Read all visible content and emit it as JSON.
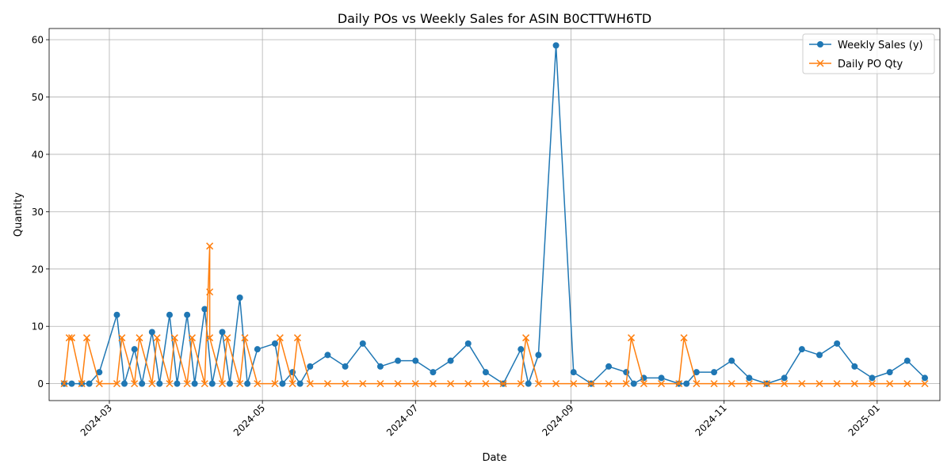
{
  "chart_data": {
    "type": "line",
    "title": "Daily POs vs Weekly Sales for ASIN B0CTTWH6TD",
    "xlabel": "Date",
    "ylabel": "Quantity",
    "x_axis_type": "date",
    "xlim": [
      "2024-02-06",
      "2025-01-26"
    ],
    "ylim": [
      -2.95,
      61.95
    ],
    "yticks": [
      0,
      10,
      20,
      30,
      40,
      50,
      60
    ],
    "xticks": [
      "2024-03-01",
      "2024-05-01",
      "2024-07-01",
      "2024-09-01",
      "2024-11-01",
      "2025-01-01"
    ],
    "xtick_labels": [
      "2024-03",
      "2024-05",
      "2024-07",
      "2024-09",
      "2024-11",
      "2025-01"
    ],
    "grid": true,
    "legend_position": "top-right",
    "colors": {
      "weekly": "#1f77b4",
      "daily": "#ff7f0e",
      "grid": "#b0b0b0"
    },
    "series": [
      {
        "name": "Weekly Sales (y)",
        "marker": "circle",
        "points": [
          [
            "2024-02-12",
            0
          ],
          [
            "2024-02-15",
            0
          ],
          [
            "2024-02-19",
            0
          ],
          [
            "2024-02-22",
            0
          ],
          [
            "2024-02-26",
            2
          ],
          [
            "2024-03-04",
            12
          ],
          [
            "2024-03-07",
            0
          ],
          [
            "2024-03-11",
            6
          ],
          [
            "2024-03-14",
            0
          ],
          [
            "2024-03-18",
            9
          ],
          [
            "2024-03-21",
            0
          ],
          [
            "2024-03-25",
            12
          ],
          [
            "2024-03-28",
            0
          ],
          [
            "2024-04-01",
            12
          ],
          [
            "2024-04-04",
            0
          ],
          [
            "2024-04-08",
            13
          ],
          [
            "2024-04-11",
            0
          ],
          [
            "2024-04-15",
            9
          ],
          [
            "2024-04-18",
            0
          ],
          [
            "2024-04-22",
            15
          ],
          [
            "2024-04-25",
            0
          ],
          [
            "2024-04-29",
            6
          ],
          [
            "2024-05-06",
            7
          ],
          [
            "2024-05-09",
            0
          ],
          [
            "2024-05-13",
            2
          ],
          [
            "2024-05-16",
            0
          ],
          [
            "2024-05-20",
            3
          ],
          [
            "2024-05-27",
            5
          ],
          [
            "2024-06-03",
            3
          ],
          [
            "2024-06-10",
            7
          ],
          [
            "2024-06-17",
            3
          ],
          [
            "2024-06-24",
            4
          ],
          [
            "2024-07-01",
            4
          ],
          [
            "2024-07-08",
            2
          ],
          [
            "2024-07-15",
            4
          ],
          [
            "2024-07-22",
            7
          ],
          [
            "2024-07-29",
            2
          ],
          [
            "2024-08-05",
            0
          ],
          [
            "2024-08-12",
            6
          ],
          [
            "2024-08-15",
            0
          ],
          [
            "2024-08-19",
            5
          ],
          [
            "2024-08-26",
            59
          ],
          [
            "2024-09-02",
            2
          ],
          [
            "2024-09-09",
            0
          ],
          [
            "2024-09-16",
            3
          ],
          [
            "2024-09-23",
            2
          ],
          [
            "2024-09-26",
            0
          ],
          [
            "2024-09-30",
            1
          ],
          [
            "2024-10-07",
            1
          ],
          [
            "2024-10-14",
            0
          ],
          [
            "2024-10-17",
            0
          ],
          [
            "2024-10-21",
            2
          ],
          [
            "2024-10-28",
            2
          ],
          [
            "2024-11-04",
            4
          ],
          [
            "2024-11-11",
            1
          ],
          [
            "2024-11-18",
            0
          ],
          [
            "2024-11-25",
            1
          ],
          [
            "2024-12-02",
            6
          ],
          [
            "2024-12-09",
            5
          ],
          [
            "2024-12-16",
            7
          ],
          [
            "2024-12-23",
            3
          ],
          [
            "2024-12-30",
            1
          ],
          [
            "2025-01-06",
            2
          ],
          [
            "2025-01-13",
            4
          ],
          [
            "2025-01-20",
            1
          ]
        ]
      },
      {
        "name": "Daily PO Qty",
        "marker": "x",
        "points": [
          [
            "2024-02-12",
            0
          ],
          [
            "2024-02-14",
            8
          ],
          [
            "2024-02-15",
            8
          ],
          [
            "2024-02-19",
            0
          ],
          [
            "2024-02-21",
            8
          ],
          [
            "2024-02-26",
            0
          ],
          [
            "2024-03-04",
            0
          ],
          [
            "2024-03-06",
            8
          ],
          [
            "2024-03-11",
            0
          ],
          [
            "2024-03-13",
            8
          ],
          [
            "2024-03-18",
            0
          ],
          [
            "2024-03-20",
            8
          ],
          [
            "2024-03-25",
            0
          ],
          [
            "2024-03-27",
            8
          ],
          [
            "2024-04-01",
            0
          ],
          [
            "2024-04-03",
            8
          ],
          [
            "2024-04-08",
            0
          ],
          [
            "2024-04-10",
            24
          ],
          [
            "2024-04-10",
            16
          ],
          [
            "2024-04-10",
            8
          ],
          [
            "2024-04-15",
            0
          ],
          [
            "2024-04-17",
            8
          ],
          [
            "2024-04-22",
            0
          ],
          [
            "2024-04-24",
            8
          ],
          [
            "2024-04-29",
            0
          ],
          [
            "2024-05-06",
            0
          ],
          [
            "2024-05-08",
            8
          ],
          [
            "2024-05-13",
            0
          ],
          [
            "2024-05-15",
            8
          ],
          [
            "2024-05-20",
            0
          ],
          [
            "2024-05-27",
            0
          ],
          [
            "2024-06-03",
            0
          ],
          [
            "2024-06-10",
            0
          ],
          [
            "2024-06-17",
            0
          ],
          [
            "2024-06-24",
            0
          ],
          [
            "2024-07-01",
            0
          ],
          [
            "2024-07-08",
            0
          ],
          [
            "2024-07-15",
            0
          ],
          [
            "2024-07-22",
            0
          ],
          [
            "2024-07-29",
            0
          ],
          [
            "2024-08-05",
            0
          ],
          [
            "2024-08-12",
            0
          ],
          [
            "2024-08-14",
            8
          ],
          [
            "2024-08-19",
            0
          ],
          [
            "2024-08-26",
            0
          ],
          [
            "2024-09-02",
            0
          ],
          [
            "2024-09-09",
            0
          ],
          [
            "2024-09-16",
            0
          ],
          [
            "2024-09-23",
            0
          ],
          [
            "2024-09-25",
            8
          ],
          [
            "2024-09-30",
            0
          ],
          [
            "2024-10-07",
            0
          ],
          [
            "2024-10-14",
            0
          ],
          [
            "2024-10-16",
            8
          ],
          [
            "2024-10-21",
            0
          ],
          [
            "2024-10-28",
            0
          ],
          [
            "2024-11-04",
            0
          ],
          [
            "2024-11-11",
            0
          ],
          [
            "2024-11-18",
            0
          ],
          [
            "2024-11-25",
            0
          ],
          [
            "2024-12-02",
            0
          ],
          [
            "2024-12-09",
            0
          ],
          [
            "2024-12-16",
            0
          ],
          [
            "2024-12-23",
            0
          ],
          [
            "2024-12-30",
            0
          ],
          [
            "2025-01-06",
            0
          ],
          [
            "2025-01-13",
            0
          ],
          [
            "2025-01-20",
            0
          ]
        ]
      }
    ]
  }
}
